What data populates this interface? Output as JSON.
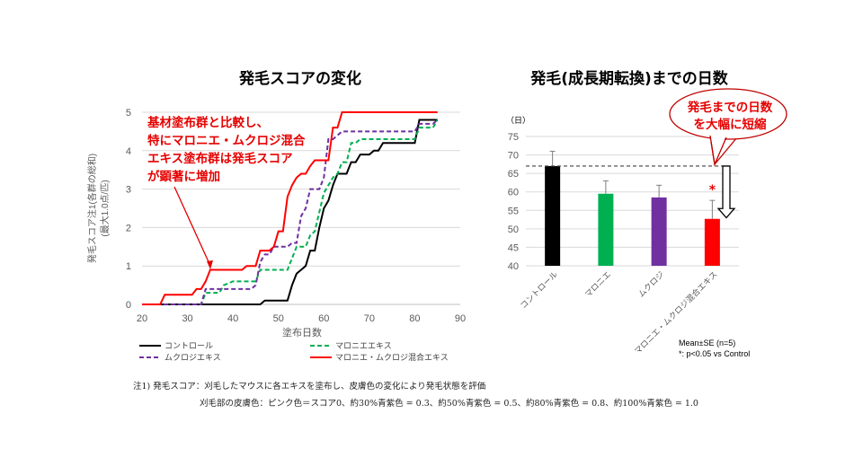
{
  "chart_data": [
    {
      "type": "line",
      "title": "発毛スコアの変化",
      "xlabel": "塗布日数",
      "ylabel": "発毛スコア注1(各群の総和)",
      "ylabel2": "(最大1.0点/匹)",
      "xlim": [
        20,
        90
      ],
      "ylim": [
        0,
        5
      ],
      "xticks": [
        20,
        30,
        40,
        50,
        60,
        70,
        80,
        90
      ],
      "yticks": [
        0,
        1,
        2,
        3,
        4,
        5
      ],
      "grid": "horizontal",
      "legend_position": "bottom",
      "annotation": [
        "基材塗布群と比較し、",
        "特にマロニエ・ムクロジ混合",
        "エキス塗布群は発毛スコア",
        "が顕著に増加"
      ],
      "series": [
        {
          "name": "コントロール",
          "color": "#000000",
          "dash": false,
          "x": [
            20,
            46,
            47,
            52,
            53,
            54,
            55,
            56,
            57,
            58,
            59,
            60,
            61,
            62,
            63,
            65,
            66,
            67,
            68,
            70,
            71,
            72,
            73,
            80,
            81,
            85
          ],
          "y": [
            0,
            0,
            0.1,
            0.1,
            0.5,
            0.8,
            0.9,
            1.0,
            1.4,
            1.4,
            2.0,
            2.5,
            2.7,
            3.1,
            3.4,
            3.4,
            3.7,
            3.7,
            3.9,
            3.9,
            4.0,
            4.0,
            4.2,
            4.2,
            4.8,
            4.8
          ]
        },
        {
          "name": "マロニエエキス",
          "color": "#00b050",
          "dash": true,
          "x": [
            20,
            33,
            34,
            37,
            38,
            40,
            45,
            46,
            52,
            53,
            54,
            56,
            57,
            58,
            59,
            60,
            61,
            62,
            63,
            64,
            65,
            66,
            67,
            68,
            80,
            81,
            84,
            85
          ],
          "y": [
            0,
            0,
            0.3,
            0.3,
            0.5,
            0.6,
            0.6,
            0.9,
            0.9,
            1.2,
            1.5,
            1.5,
            1.8,
            1.9,
            2.4,
            2.9,
            3.1,
            3.3,
            3.4,
            3.7,
            3.7,
            4.2,
            4.2,
            4.3,
            4.3,
            4.6,
            4.6,
            4.8
          ]
        },
        {
          "name": "ムクロジエキス",
          "color": "#7030a0",
          "dash": true,
          "x": [
            20,
            33,
            34,
            44,
            45,
            46,
            47,
            48,
            49,
            52,
            53,
            54,
            55,
            56,
            57,
            59,
            60,
            61,
            62,
            63,
            64,
            80,
            81,
            84,
            85
          ],
          "y": [
            0,
            0,
            0.4,
            0.4,
            0.5,
            1.1,
            1.3,
            1.3,
            1.5,
            1.5,
            1.6,
            1.6,
            2.3,
            2.5,
            3.0,
            3.0,
            3.3,
            4.3,
            4.3,
            4.4,
            4.5,
            4.5,
            4.7,
            4.7,
            4.8
          ]
        },
        {
          "name": "マロニエ・ムクロジ混合エキス",
          "color": "#ff0000",
          "dash": false,
          "x": [
            20,
            24,
            25,
            31,
            32,
            33,
            34,
            35,
            42,
            43,
            45,
            46,
            48,
            49,
            50,
            51,
            52,
            53,
            54,
            55,
            56,
            57,
            58,
            61,
            62,
            63,
            64,
            85
          ],
          "y": [
            0,
            0,
            0.25,
            0.25,
            0.4,
            0.4,
            0.6,
            0.9,
            0.9,
            1.0,
            1.0,
            1.4,
            1.4,
            1.5,
            1.9,
            1.9,
            2.8,
            3.1,
            3.3,
            3.4,
            3.4,
            3.6,
            3.75,
            3.75,
            4.6,
            4.6,
            5.0,
            5.0
          ]
        }
      ]
    },
    {
      "type": "bar",
      "title": "発毛(成長期転換)までの日数",
      "ylabel": "（日）",
      "ylim": [
        40,
        75
      ],
      "yticks": [
        40,
        45,
        50,
        55,
        60,
        65,
        70,
        75
      ],
      "grid": "horizontal",
      "categories": [
        "コントロール",
        "マロニエ",
        "ムクロジ",
        "マロニエ・ムクロジ混合エキス"
      ],
      "values": [
        67,
        59.5,
        58.5,
        52.7
      ],
      "error_upper": [
        71,
        63,
        61.8,
        57.7
      ],
      "colors": [
        "#000000",
        "#00b050",
        "#7030a0",
        "#ff0000"
      ],
      "significance": [
        "",
        "",
        "",
        "*"
      ],
      "reference_line": 67,
      "callout": [
        "発毛までの日数",
        "を大幅に短縮"
      ],
      "footnote": [
        "Mean±SE (n=5)",
        "*: p<0.05 vs Control"
      ]
    }
  ],
  "notes": {
    "line1": "注1) 発毛スコア：刈毛したマウスに各エキスを塗布し、皮膚色の変化により発毛状態を評価",
    "line2": "刈毛部の皮膚色：ピンク色＝スコア0、約30%青紫色 = 0.3、約50%青紫色 = 0.5、約80%青紫色 = 0.8、約100%青紫色 = 1.0"
  }
}
